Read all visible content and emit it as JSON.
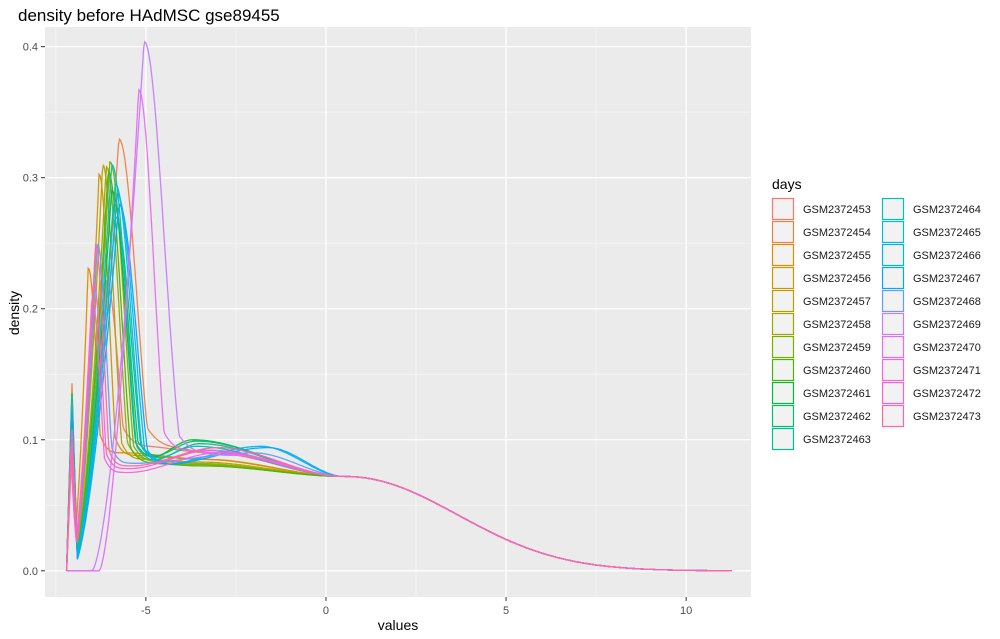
{
  "chart_data": {
    "type": "line",
    "title": "density before HAdMSC gse89455",
    "xlabel": "values",
    "ylabel": "density",
    "xlim": [
      -7.8,
      11.8
    ],
    "ylim": [
      -0.02,
      0.415
    ],
    "x_ticks": [
      -5,
      0,
      5,
      10
    ],
    "y_ticks": [
      0.0,
      0.1,
      0.2,
      0.3,
      0.4
    ],
    "x_tick_labels": [
      "-5",
      "0",
      "5",
      "10"
    ],
    "y_tick_labels": [
      "0.0",
      "0.1",
      "0.2",
      "0.3",
      "0.4"
    ],
    "grid": true,
    "legend": {
      "title": "days",
      "position": "right",
      "columns": 2
    },
    "series": [
      {
        "name": "GSM2372453",
        "color": "#F8766D",
        "peak_x": -6.1,
        "peak_y": 0.21,
        "lower_x": -7.05,
        "valley_y": 0.095,
        "shoulder_x": -3.2,
        "shoulder_y": 0.09
      },
      {
        "name": "GSM2372454",
        "color": "#F07F44",
        "peak_x": -5.75,
        "peak_y": 0.318,
        "lower_x": -7.05,
        "valley_y": 0.095,
        "shoulder_x": -3.0,
        "shoulder_y": 0.09
      },
      {
        "name": "GSM2372455",
        "color": "#E08B00",
        "peak_x": -6.6,
        "peak_y": 0.22,
        "lower_x": -7.08,
        "valley_y": 0.09,
        "shoulder_x": -3.3,
        "shoulder_y": 0.085
      },
      {
        "name": "GSM2372456",
        "color": "#CF9400",
        "peak_x": -6.3,
        "peak_y": 0.292,
        "lower_x": -7.05,
        "valley_y": 0.088,
        "shoulder_x": -3.4,
        "shoulder_y": 0.085
      },
      {
        "name": "GSM2372457",
        "color": "#B79F00",
        "peak_x": -6.2,
        "peak_y": 0.3,
        "lower_x": -7.05,
        "valley_y": 0.085,
        "shoulder_x": -3.5,
        "shoulder_y": 0.083
      },
      {
        "name": "GSM2372458",
        "color": "#9DA700",
        "peak_x": -6.1,
        "peak_y": 0.298,
        "lower_x": -7.05,
        "valley_y": 0.085,
        "shoulder_x": -3.6,
        "shoulder_y": 0.082
      },
      {
        "name": "GSM2372459",
        "color": "#7CAE00",
        "peak_x": -6.0,
        "peak_y": 0.302,
        "lower_x": -7.05,
        "valley_y": 0.083,
        "shoulder_x": -3.5,
        "shoulder_y": 0.081
      },
      {
        "name": "GSM2372460",
        "color": "#49B500",
        "peak_x": -6.05,
        "peak_y": 0.295,
        "lower_x": -7.05,
        "valley_y": 0.082,
        "shoulder_x": -3.4,
        "shoulder_y": 0.08
      },
      {
        "name": "GSM2372461",
        "color": "#00BA38",
        "peak_x": -5.95,
        "peak_y": 0.28,
        "lower_x": -7.05,
        "valley_y": 0.085,
        "shoulder_x": -3.7,
        "shoulder_y": 0.1
      },
      {
        "name": "GSM2372462",
        "color": "#00BE6C",
        "peak_x": -5.9,
        "peak_y": 0.27,
        "lower_x": -7.05,
        "valley_y": 0.086,
        "shoulder_x": -3.6,
        "shoulder_y": 0.099
      },
      {
        "name": "GSM2372463",
        "color": "#00BF96",
        "peak_x": -5.85,
        "peak_y": 0.26,
        "lower_x": -7.05,
        "valley_y": 0.084,
        "shoulder_x": -3.5,
        "shoulder_y": 0.097
      },
      {
        "name": "GSM2372464",
        "color": "#00C0B8",
        "peak_x": -5.95,
        "peak_y": 0.3,
        "lower_x": -7.05,
        "valley_y": 0.083,
        "shoulder_x": -3.6,
        "shoulder_y": 0.095
      },
      {
        "name": "GSM2372465",
        "color": "#00BCD8",
        "peak_x": -5.85,
        "peak_y": 0.285,
        "lower_x": -7.05,
        "valley_y": 0.082,
        "shoulder_x": -3.4,
        "shoulder_y": 0.092
      },
      {
        "name": "GSM2372466",
        "color": "#00B5EE",
        "peak_x": -5.8,
        "peak_y": 0.278,
        "lower_x": -7.05,
        "valley_y": 0.08,
        "shoulder_x": -1.8,
        "shoulder_y": 0.095
      },
      {
        "name": "GSM2372467",
        "color": "#00A9FF",
        "peak_x": -5.75,
        "peak_y": 0.27,
        "lower_x": -7.05,
        "valley_y": 0.08,
        "shoulder_x": -1.6,
        "shoulder_y": 0.094
      },
      {
        "name": "GSM2372468",
        "color": "#619CFF",
        "peak_x": -6.35,
        "peak_y": 0.24,
        "lower_x": -7.05,
        "valley_y": 0.082,
        "shoulder_x": -2.0,
        "shoulder_y": 0.09
      },
      {
        "name": "GSM2372469",
        "color": "#C77CFF",
        "peak_x": -5.05,
        "peak_y": 0.393,
        "lower_x": -6.5,
        "valley_y": 0.09,
        "shoulder_x": -2.5,
        "shoulder_y": 0.088
      },
      {
        "name": "GSM2372470",
        "color": "#E76BF3",
        "peak_x": -5.2,
        "peak_y": 0.356,
        "lower_x": -6.3,
        "valley_y": 0.092,
        "shoulder_x": -2.8,
        "shoulder_y": 0.09
      },
      {
        "name": "GSM2372471",
        "color": "#F564E3",
        "peak_x": -6.5,
        "peak_y": 0.2,
        "lower_x": -7.08,
        "valley_y": 0.075,
        "shoulder_x": -3.0,
        "shoulder_y": 0.09
      },
      {
        "name": "GSM2372472",
        "color": "#FD61D1",
        "peak_x": -6.45,
        "peak_y": 0.21,
        "lower_x": -7.08,
        "valley_y": 0.078,
        "shoulder_x": -3.2,
        "shoulder_y": 0.092
      },
      {
        "name": "GSM2372473",
        "color": "#FF67A4",
        "peak_x": -6.4,
        "peak_y": 0.24,
        "lower_x": -7.05,
        "valley_y": 0.08,
        "shoulder_x": -3.0,
        "shoulder_y": 0.094
      }
    ]
  }
}
